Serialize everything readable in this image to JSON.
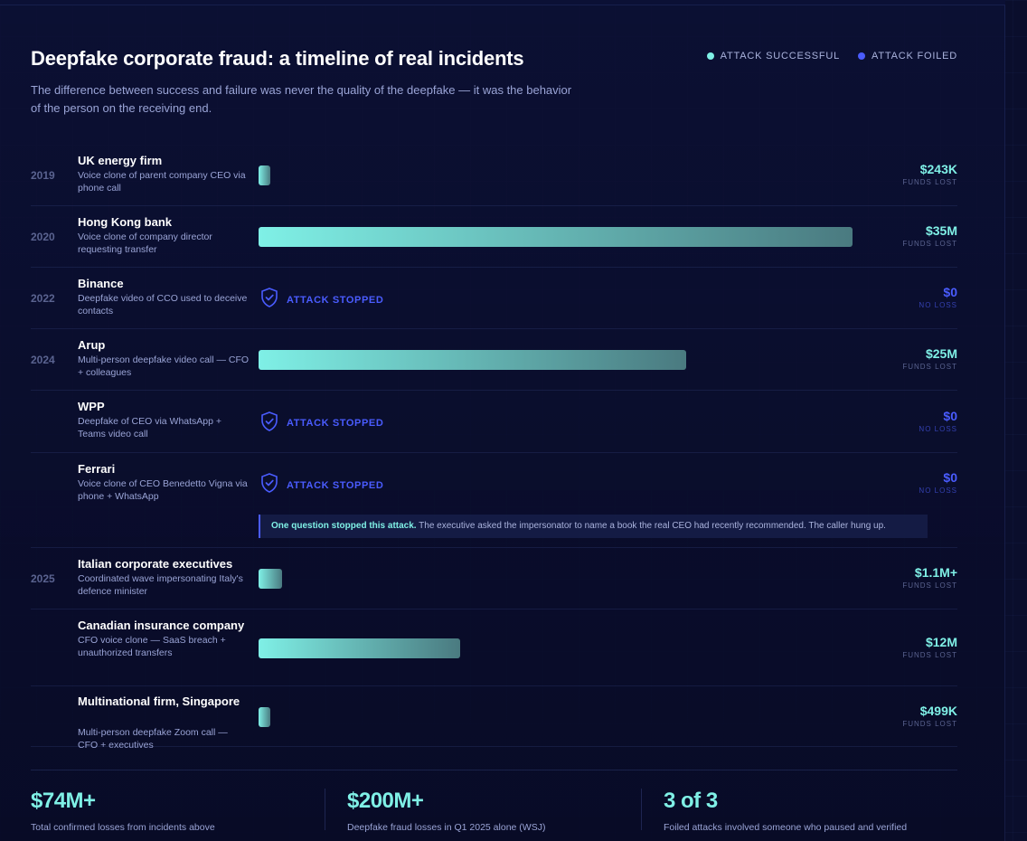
{
  "header": {
    "title": "Deepfake corporate fraud: a timeline of real incidents",
    "subtitle": "The difference between success and failure was never the quality of the deepfake — it was the behavior of the person on the receiving end."
  },
  "legend": [
    {
      "label": "ATTACK SUCCESSFUL",
      "color": "#7ff0e6"
    },
    {
      "label": "ATTACK FOILED",
      "color": "#4a5cff"
    }
  ],
  "colors": {
    "success": "#7ff0e6",
    "foiled": "#4a5cff"
  },
  "incidents": [
    {
      "year": "2019",
      "name": "UK energy firm",
      "desc": "Voice clone of parent company CEO via phone call",
      "status": "success",
      "amount": "$243K",
      "amount_note": "FUNDS LOST",
      "bar_fraction": 0.02
    },
    {
      "year": "2020",
      "name": "Hong Kong bank",
      "desc": "Voice clone of company director requesting transfer",
      "status": "success",
      "amount": "$35M",
      "amount_note": "FUNDS LOST",
      "bar_fraction": 1.0
    },
    {
      "year": "2022",
      "name": "Binance",
      "desc": "Deepfake video of CCO used to deceive contacts",
      "status": "foiled",
      "stopped_label": "ATTACK STOPPED",
      "amount": "$0",
      "amount_note": "NO LOSS"
    },
    {
      "year": "2024",
      "name": "Arup",
      "desc": "Multi-person deepfake video call — CFO + colleagues",
      "status": "success",
      "amount": "$25M",
      "amount_note": "FUNDS LOST",
      "bar_fraction": 0.72
    },
    {
      "year": "",
      "name": "WPP",
      "desc": "Deepfake of CEO via WhatsApp + Teams video call",
      "status": "foiled",
      "stopped_label": "ATTACK STOPPED",
      "amount": "$0",
      "amount_note": "NO LOSS"
    },
    {
      "year": "",
      "name": "Ferrari",
      "desc": "Voice clone of CEO Benedetto Vigna via phone + WhatsApp",
      "status": "foiled",
      "stopped_label": "ATTACK STOPPED",
      "amount": "$0",
      "amount_note": "NO LOSS",
      "note_bold": "One question stopped this attack.",
      "note_text": " The executive asked the impersonator to name a book the real CEO had recently recommended. The caller hung up."
    },
    {
      "year": "2025",
      "name": "Italian corporate executives",
      "desc": "Coordinated wave impersonating Italy's defence minister",
      "status": "success",
      "amount": "$1.1M+",
      "amount_note": "FUNDS LOST",
      "bar_fraction": 0.04
    },
    {
      "year": "",
      "name": "Canadian insurance company",
      "desc": "CFO voice clone — SaaS breach + unauthorized transfers",
      "status": "success",
      "amount": "$12M",
      "amount_note": "FUNDS LOST",
      "bar_fraction": 0.34
    },
    {
      "year": "",
      "name": "Multinational firm, Singapore",
      "desc": "Multi-person deepfake Zoom call — CFO + executives",
      "status": "success",
      "amount": "$499K",
      "amount_note": "FUNDS LOST",
      "bar_fraction": 0.02
    }
  ],
  "stats": [
    {
      "value": "$74M+",
      "label": "Total confirmed losses from incidents above"
    },
    {
      "value": "$200M+",
      "label": "Deepfake fraud losses in Q1 2025 alone (WSJ)"
    },
    {
      "value": "3 of 3",
      "label": "Foiled attacks involved someone who paused and verified"
    }
  ]
}
